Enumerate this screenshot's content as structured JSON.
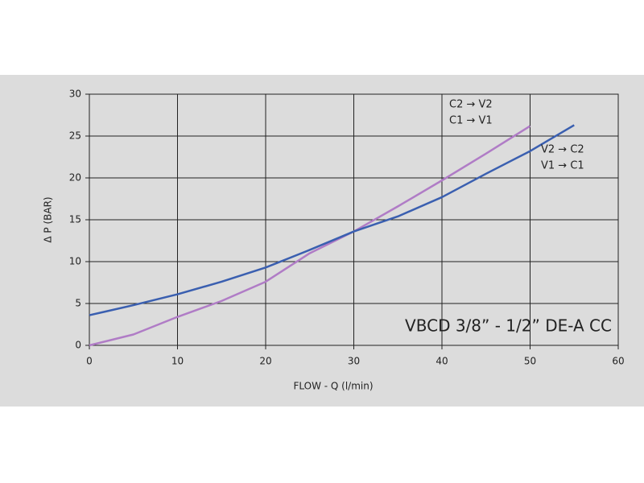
{
  "chart_data": {
    "type": "line",
    "annotation": "VBCD 3/8” - 1/2” DE-A CC",
    "xlabel": "FLOW - Q (l/min)",
    "ylabel": "Δ P (BAR)",
    "xlim": [
      0,
      60
    ],
    "xticks": [
      0,
      10,
      20,
      30,
      40,
      50,
      60
    ],
    "ylim": [
      0,
      30
    ],
    "yticks": [
      0,
      5,
      10,
      15,
      20,
      25,
      30
    ],
    "grid": true,
    "series": [
      {
        "legend": [
          "C2 → V2",
          "C1 → V1"
        ],
        "color": "#b07cc6",
        "x": [
          0,
          5,
          10,
          15,
          20,
          25,
          30,
          35,
          40,
          45,
          50
        ],
        "values": [
          0,
          1.3,
          3.4,
          5.3,
          7.6,
          11.0,
          13.6,
          16.6,
          19.7,
          22.9,
          26.2
        ]
      },
      {
        "legend": [
          "V2 → C2",
          "V1 → C1"
        ],
        "color": "#3a5fb0",
        "x": [
          0,
          5,
          10,
          15,
          20,
          25,
          30,
          35,
          40,
          45,
          50,
          55
        ],
        "values": [
          3.6,
          4.8,
          6.1,
          7.6,
          9.3,
          11.4,
          13.6,
          15.4,
          17.7,
          20.5,
          23.2,
          26.3
        ]
      }
    ]
  }
}
